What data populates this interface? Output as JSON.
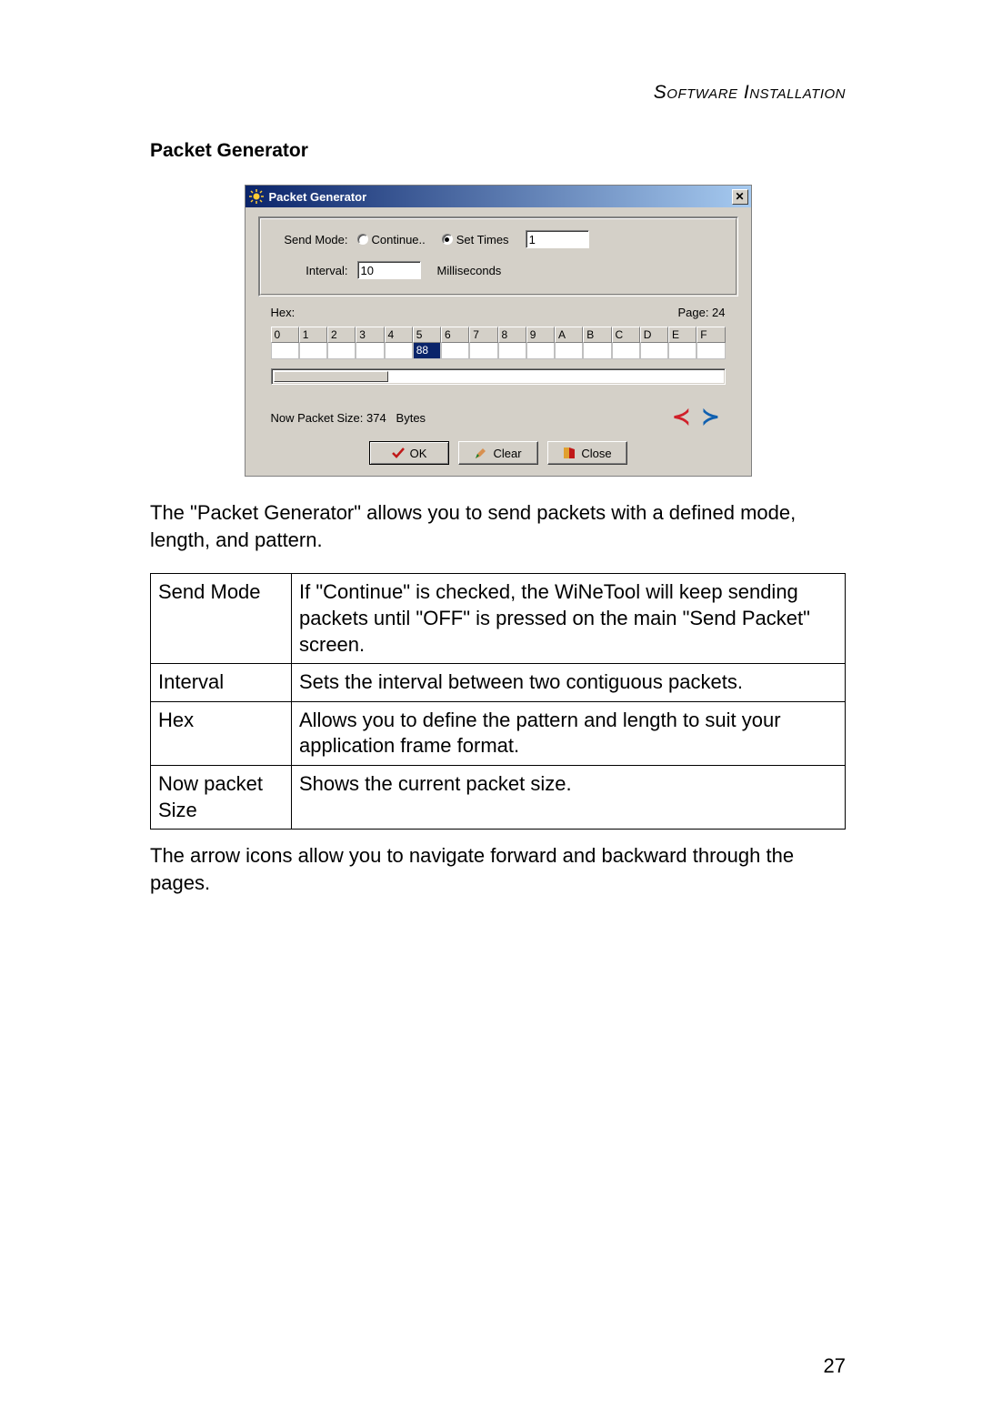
{
  "header": {
    "text": "Software Installation"
  },
  "section_title": "Packet Generator",
  "dialog": {
    "title": "Packet Generator",
    "titlebar_gradient": [
      "#0a246a",
      "#a6caf0"
    ],
    "background": "#d4d0c8",
    "send_mode_label": "Send Mode:",
    "radio_continue_label": "Continue..",
    "radio_continue_checked": false,
    "radio_settimes_label": "Set Times",
    "radio_settimes_checked": true,
    "set_times_value": "1",
    "interval_label": "Interval:",
    "interval_value": "10",
    "interval_unit": "Milliseconds",
    "hex_label": "Hex:",
    "page_label": "Page: 24",
    "hex_columns": [
      "0",
      "1",
      "2",
      "3",
      "4",
      "5",
      "6",
      "7",
      "8",
      "9",
      "A",
      "B",
      "C",
      "D",
      "E",
      "F"
    ],
    "hex_values": [
      "",
      "",
      "",
      "",
      "",
      "88",
      "",
      "",
      "",
      "",
      "",
      "",
      "",
      "",
      "",
      ""
    ],
    "hex_selected_index": 5,
    "scrollbar_thumb_pct": 24,
    "status_prefix": "Now Packet Size: ",
    "status_value": "374",
    "status_unit": "Bytes",
    "arrow_left_char": "≺",
    "arrow_right_char": "≻",
    "buttons": {
      "ok": "OK",
      "clear": "Clear",
      "close": "Close"
    }
  },
  "description": "The \"Packet Generator\" allows you to send packets with a defined mode, length, and pattern.",
  "table": {
    "rows": [
      {
        "term": "Send Mode",
        "desc": "If \"Continue\" is checked, the WiNeTool will keep sending packets until \"OFF\" is pressed on the main \"Send Packet\" screen."
      },
      {
        "term": "Interval",
        "desc": "Sets the interval between two contiguous packets."
      },
      {
        "term": "Hex",
        "desc": "Allows you to define the pattern and length to suit your application frame format."
      },
      {
        "term": "Now packet Size",
        "desc": "Shows the current packet size."
      }
    ]
  },
  "footer_text": "The arrow icons allow you to navigate forward and backward through the pages.",
  "page_number": "27",
  "colors": {
    "arrow_left": "#d0202a",
    "arrow_right": "#1060b0",
    "ok_check": "#c01818",
    "clear_pencil": "#c08030",
    "close_door_left": "#e0a030",
    "close_door_right": "#c01818"
  }
}
